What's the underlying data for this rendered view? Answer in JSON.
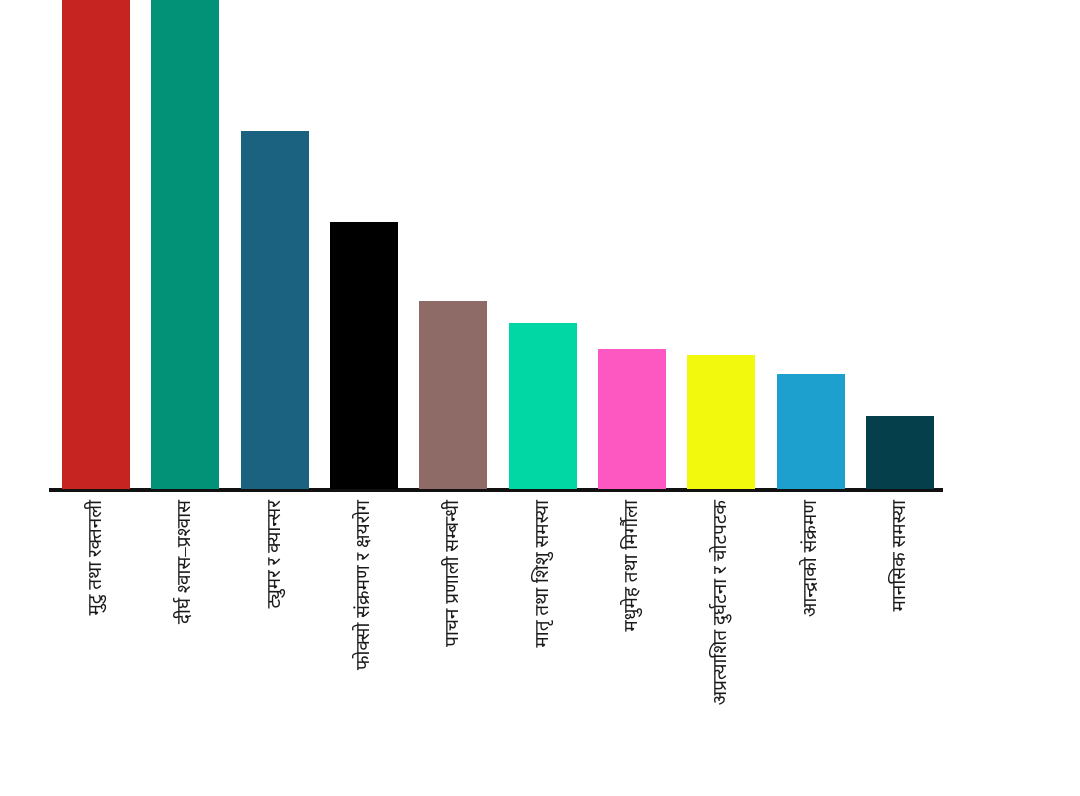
{
  "chart_data": {
    "type": "bar",
    "orientation": "vertical",
    "title": "",
    "xlabel": "",
    "ylabel": "",
    "legend": false,
    "grid": false,
    "y_axis_ticks_visible": false,
    "x_axis_line_visible": true,
    "x_tick_label_rotation_deg": 90,
    "categories": [
      "मुटु तथा रक्तनली",
      "दीर्घ श्वास–प्रश्वास",
      "ट्युमर र क्यान्सर",
      "फोक्सो संक्रमण र क्षयरोग",
      "पाचन प्रणाली सम्बन्धी",
      "मातृ तथा शिशु समस्या",
      "मधुमेह तथा मिर्गौला",
      "अप्रत्याशित दुर्घटना र चोटपटक",
      "आन्द्राको संक्रमण",
      "मानसिक समस्या"
    ],
    "values": [
      489,
      489,
      358,
      267,
      188,
      166,
      140,
      134,
      115,
      73
    ],
    "values_unit": "relative bar height in screenshot pixels (no numeric axis is shown)",
    "top_clipped": [
      true,
      true,
      false,
      false,
      false,
      false,
      false,
      false,
      false,
      false
    ],
    "colors": [
      "#c62420",
      "#019278",
      "#1a627f",
      "#000000",
      "#8f6b67",
      "#01d7a5",
      "#fd58c2",
      "#f2f90d",
      "#1da0cd",
      "#053f4c"
    ],
    "axis_color": "#111111",
    "tick_label_color": "#1a1a1a"
  }
}
